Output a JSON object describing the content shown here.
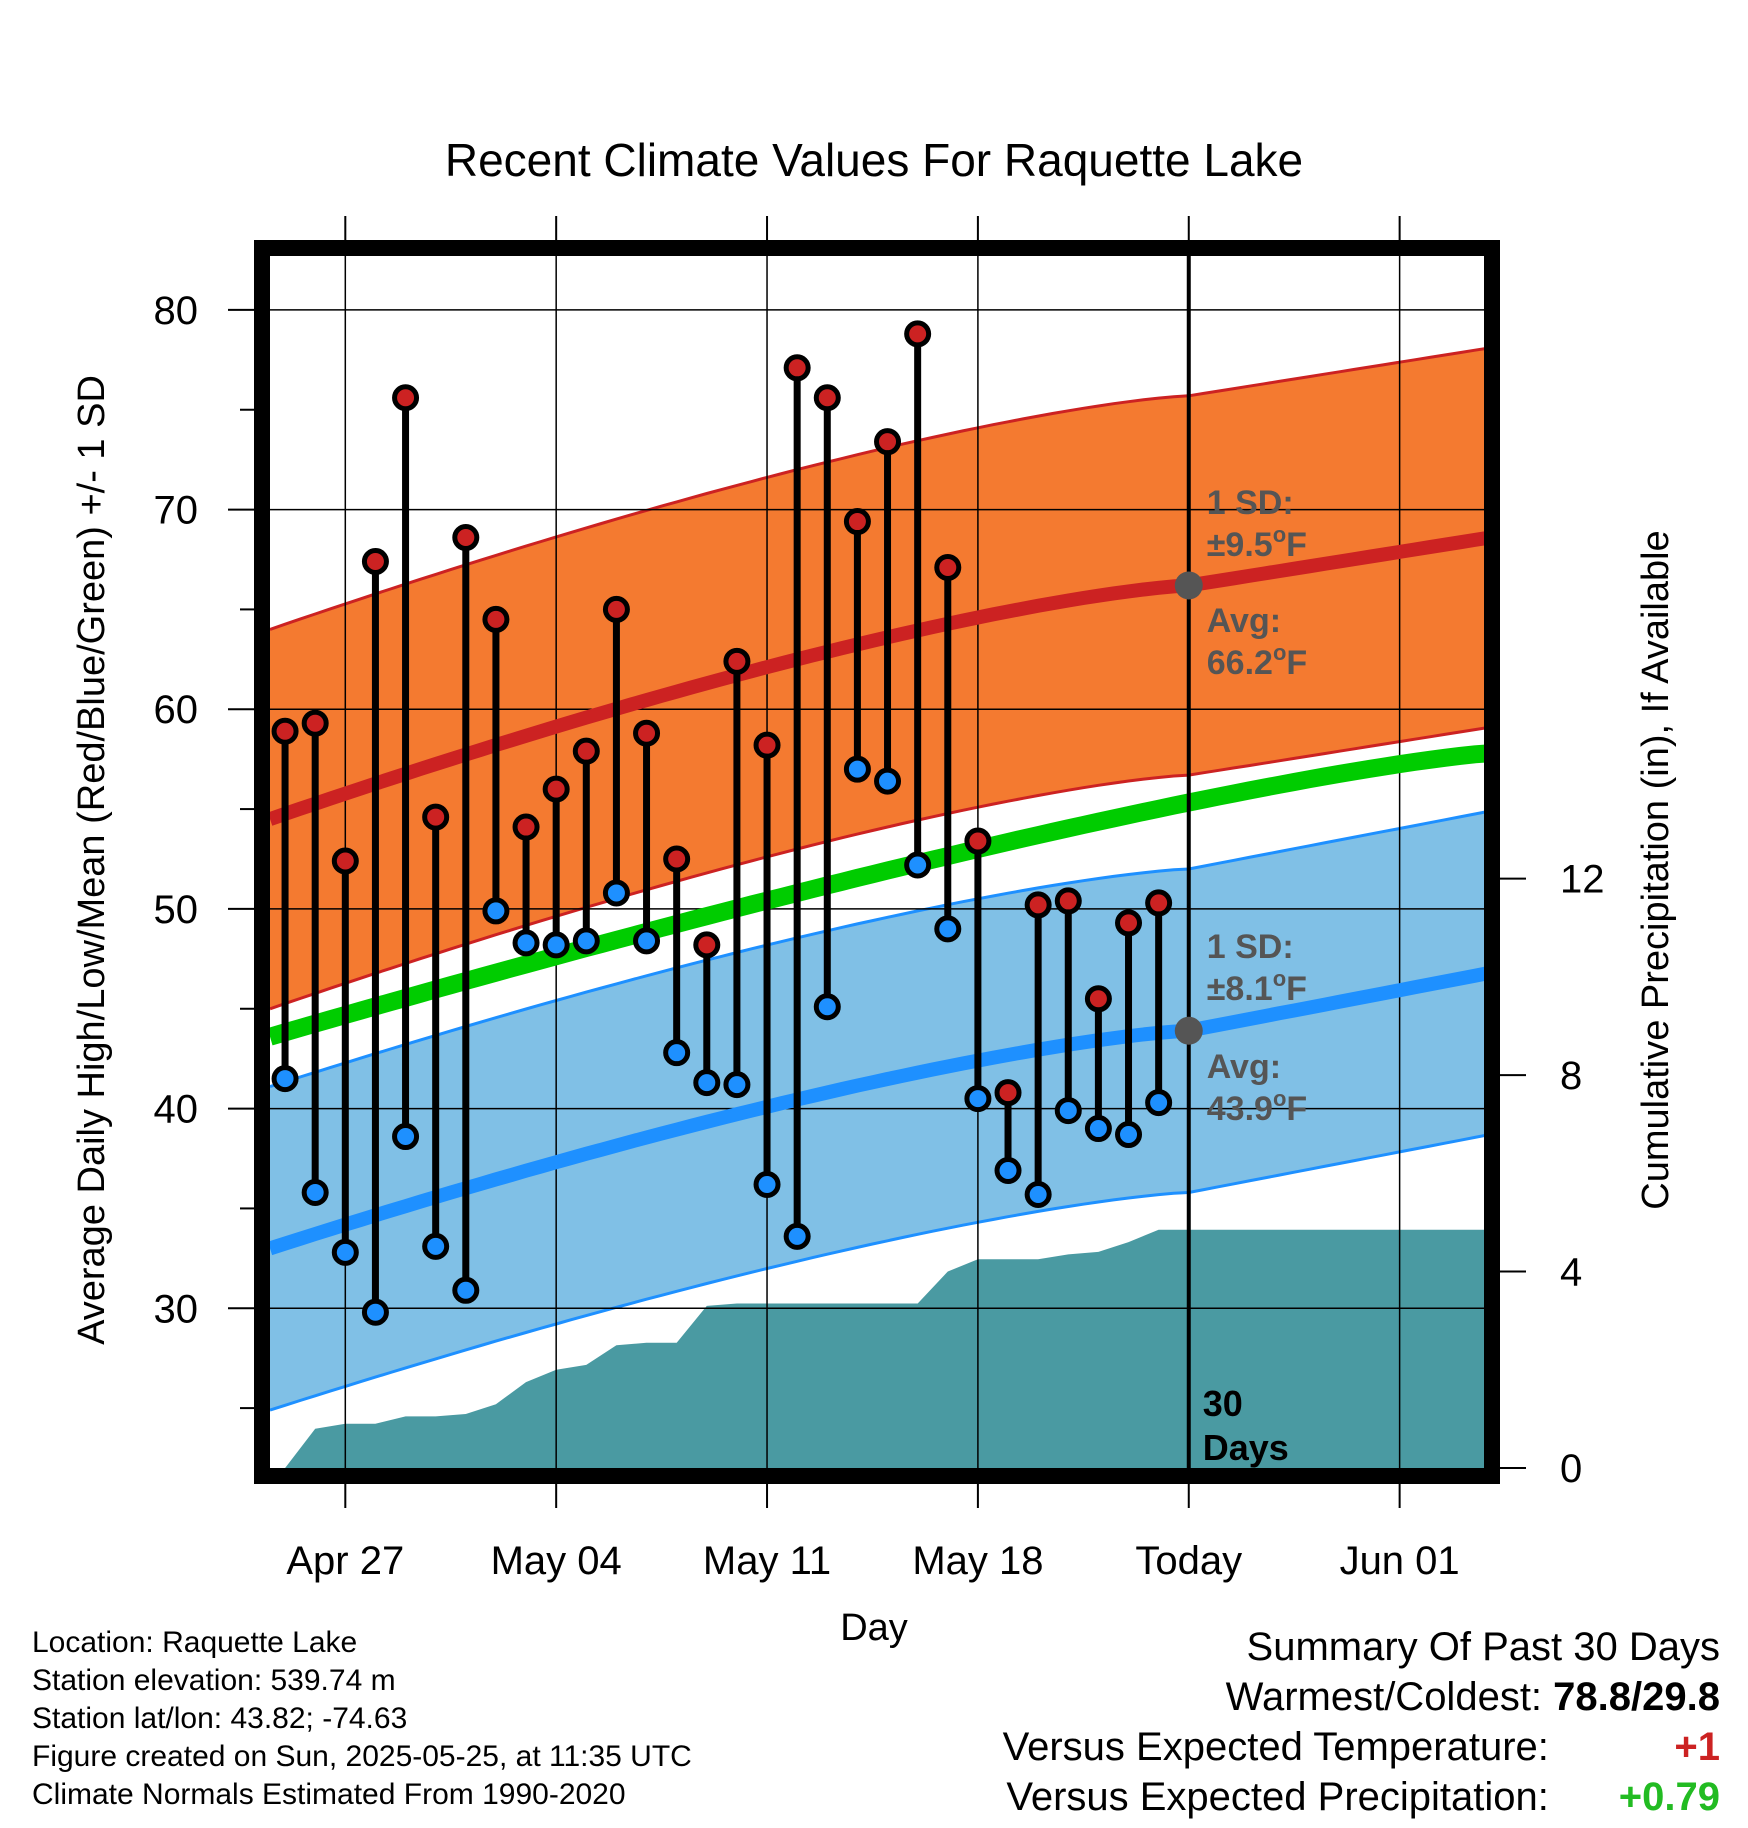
{
  "chart_data": {
    "type": "line",
    "title": "Recent Climate Values For Raquette Lake",
    "xlabel": "Day",
    "ylabel_left": "Average Daily High/Low/Mean (Red/Blue/Green) +/- 1 SD",
    "ylabel_right": "Cumulative Precipitation (in), If Available",
    "x_ticks": [
      "Apr 27",
      "May 04",
      "May 11",
      "May 18",
      "Today",
      "Jun 01"
    ],
    "y_ticks_left": [
      "30",
      "40",
      "50",
      "60",
      "70",
      "80"
    ],
    "y_ticks_right": [
      "0",
      "4",
      "8",
      "12"
    ],
    "y_left_range": [
      22,
      83
    ],
    "y_right_range": [
      0,
      24.8
    ],
    "x_day_range": [
      -30.5,
      10
    ],
    "grid": true,
    "days_since_today": [
      -30,
      -29,
      -28,
      -27,
      -26,
      -25,
      -24,
      -23,
      -22,
      -21,
      -20,
      -19,
      -18,
      -17,
      -16,
      -15,
      -14,
      -13,
      -12,
      -11,
      -10,
      -9,
      -8,
      -7,
      -6,
      -5,
      -4,
      -3,
      -2,
      -1
    ],
    "daily_high": [
      58.9,
      59.3,
      52.4,
      67.4,
      75.6,
      54.6,
      68.6,
      64.5,
      54.1,
      56.0,
      57.9,
      65.0,
      58.8,
      52.5,
      48.2,
      62.4,
      58.2,
      77.1,
      75.6,
      69.4,
      73.4,
      78.8,
      67.1,
      53.4,
      40.8,
      50.2,
      50.4,
      45.5,
      49.3,
      50.3
    ],
    "daily_low": [
      41.5,
      35.8,
      32.8,
      29.8,
      38.6,
      33.1,
      30.9,
      49.9,
      48.3,
      48.2,
      48.4,
      50.8,
      48.4,
      42.8,
      41.3,
      41.2,
      36.2,
      33.6,
      45.1,
      57.0,
      56.4,
      52.2,
      49.0,
      40.5,
      36.9,
      35.7,
      39.9,
      39.0,
      38.7,
      40.3
    ],
    "normal_high_avg": {
      "start": 54.5,
      "today": 66.2,
      "end": 68.6
    },
    "normal_high_sd": 9.5,
    "normal_low_avg": {
      "start": 33.0,
      "today": 43.9,
      "end": 46.8
    },
    "normal_low_sd": 8.1,
    "normal_mean": {
      "start": 43.6,
      "end": 57.8
    },
    "cumulative_precip_days": [
      -32,
      -30,
      -29,
      -28,
      -27,
      -26,
      -25,
      -24,
      -23,
      -22,
      -21,
      -20,
      -19,
      -18,
      -17,
      -16,
      -15,
      -14,
      -13,
      -12,
      -11,
      -10,
      -9,
      -8,
      -7,
      -6,
      -5,
      -4,
      -3,
      -2,
      -1,
      0,
      10
    ],
    "cumulative_precip": [
      0.0,
      0.0,
      0.8,
      0.9,
      0.9,
      1.05,
      1.05,
      1.1,
      1.3,
      1.75,
      2.0,
      2.1,
      2.5,
      2.55,
      2.55,
      3.3,
      3.35,
      3.35,
      3.35,
      3.35,
      3.35,
      3.35,
      3.35,
      4.0,
      4.25,
      4.25,
      4.25,
      4.35,
      4.4,
      4.6,
      4.85,
      4.85,
      4.85
    ],
    "annotations": {
      "high_sd_label": "1 SD:",
      "high_sd_value": "±9.5",
      "high_avg_label": "Avg:",
      "high_avg_value": "66.2",
      "low_sd_label": "1 SD:",
      "low_sd_value": "±8.1",
      "low_avg_label": "Avg:",
      "low_avg_value": "43.9",
      "degree_unit": "o",
      "f_unit": "F",
      "days_count": "30",
      "days_word": "Days"
    },
    "colors": {
      "high": "#cc2222",
      "high_band": "#f47a30",
      "low": "#1e90ff",
      "low_band": "#80c0e6",
      "mean": "#00cc00",
      "precip": "#4a9aa2",
      "annotation": "#555555"
    }
  },
  "location": {
    "line1": "Location: Raquette Lake",
    "line2": "Station elevation: 539.74 m",
    "line3": "Station lat/lon: 43.82; -74.63",
    "line4": "Figure created on Sun, 2025-05-25, at 11:35 UTC",
    "line5": "Climate Normals Estimated From 1990-2020"
  },
  "summary": {
    "heading": "Summary Of Past 30 Days",
    "warm_cold_label": "Warmest/Coldest:",
    "warm_cold_value": "78.8/29.8",
    "temp_label": "Versus Expected Temperature:",
    "temp_value": "+1",
    "temp_color": "#cc2222",
    "precip_label": "Versus Expected Precipitation:",
    "precip_value": "+0.79",
    "precip_color": "#22bb22"
  }
}
